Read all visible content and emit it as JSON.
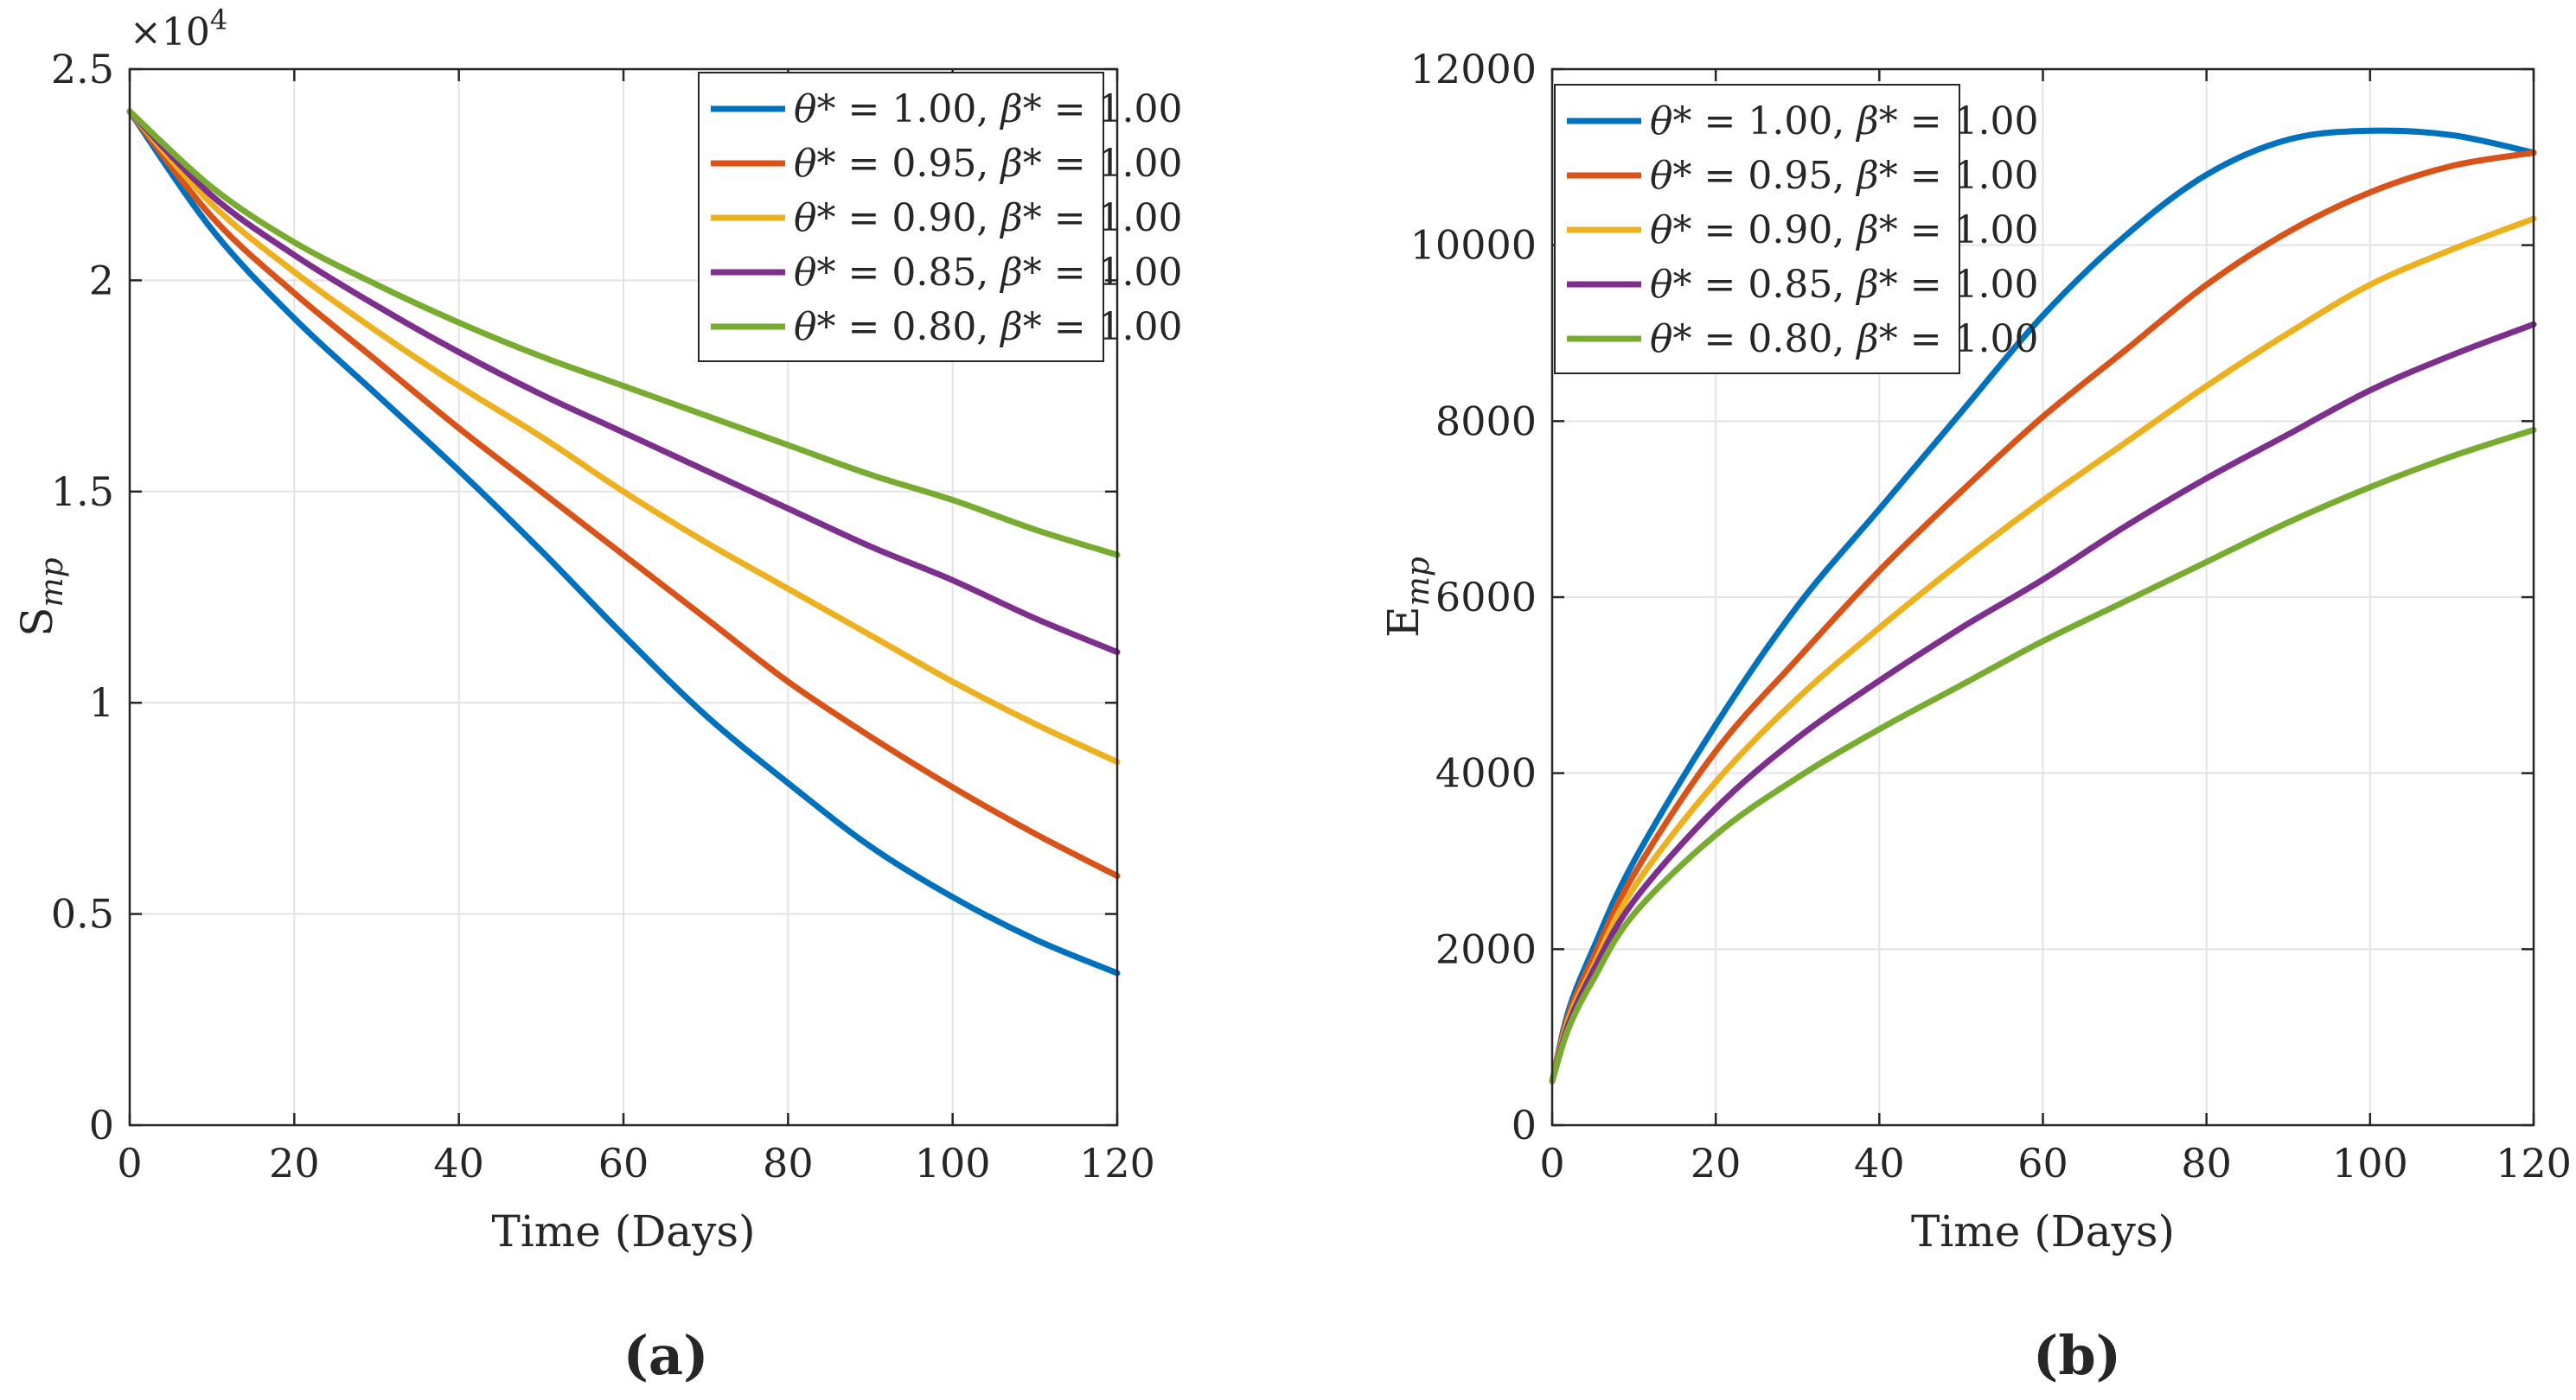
{
  "chart_data": [
    {
      "type": "line",
      "panel_label": "(a)",
      "xlabel": "Time (Days)",
      "ylabel": "S",
      "ylabel_sub": "mp",
      "y_multiplier": "×10",
      "y_multiplier_exp": "4",
      "xlim": [
        0,
        120
      ],
      "ylim": [
        0,
        2.5
      ],
      "xticks": [
        0,
        20,
        40,
        60,
        80,
        100,
        120
      ],
      "xtick_labels": [
        "0",
        "20",
        "40",
        "60",
        "80",
        "100",
        "120"
      ],
      "yticks": [
        0,
        0.5,
        1,
        1.5,
        2,
        2.5
      ],
      "ytick_labels": [
        "0",
        "0.5",
        "1",
        "1.5",
        "2",
        "2.5"
      ],
      "grid": true,
      "legend_position": "top-right",
      "x": [
        0,
        10,
        20,
        30,
        40,
        50,
        60,
        70,
        80,
        90,
        100,
        110,
        120
      ],
      "series": [
        {
          "name": "θ* = 1.00, β* = 1.00",
          "legend_theta": "θ",
          "legend_theta_val": "* = 1.00, ",
          "legend_beta": "β",
          "legend_beta_val": "* = 1.00",
          "color": "#0072BD",
          "values": [
            2.4,
            2.12,
            1.91,
            1.73,
            1.55,
            1.36,
            1.16,
            0.97,
            0.81,
            0.66,
            0.54,
            0.44,
            0.36
          ]
        },
        {
          "name": "θ* = 0.95, β* = 1.00",
          "legend_theta": "θ",
          "legend_theta_val": "* = 0.95, ",
          "legend_beta": "β",
          "legend_beta_val": "* = 1.00",
          "color": "#D95319",
          "values": [
            2.4,
            2.15,
            1.97,
            1.81,
            1.65,
            1.5,
            1.35,
            1.2,
            1.05,
            0.92,
            0.8,
            0.69,
            0.59
          ]
        },
        {
          "name": "θ* = 0.90, β* = 1.00",
          "legend_theta": "θ",
          "legend_theta_val": "* = 0.90, ",
          "legend_beta": "β",
          "legend_beta_val": "* = 1.00",
          "color": "#EDB120",
          "values": [
            2.4,
            2.18,
            2.02,
            1.88,
            1.75,
            1.63,
            1.5,
            1.38,
            1.27,
            1.16,
            1.05,
            0.95,
            0.86
          ]
        },
        {
          "name": "θ* = 0.85, β* = 1.00",
          "legend_theta": "θ",
          "legend_theta_val": "* = 0.85, ",
          "legend_beta": "β",
          "legend_beta_val": "* = 1.00",
          "color": "#7E2F8E",
          "values": [
            2.4,
            2.2,
            2.06,
            1.94,
            1.83,
            1.73,
            1.64,
            1.55,
            1.46,
            1.37,
            1.29,
            1.2,
            1.12
          ]
        },
        {
          "name": "θ* = 0.80, β* = 1.00",
          "legend_theta": "θ",
          "legend_theta_val": "* = 0.80, ",
          "legend_beta": "β",
          "legend_beta_val": "* = 1.00",
          "color": "#77AC30",
          "values": [
            2.4,
            2.22,
            2.09,
            1.99,
            1.9,
            1.82,
            1.75,
            1.68,
            1.61,
            1.54,
            1.48,
            1.41,
            1.35
          ]
        }
      ]
    },
    {
      "type": "line",
      "panel_label": "(b)",
      "xlabel": "Time (Days)",
      "ylabel": "E",
      "ylabel_sub": "mp",
      "xlim": [
        0,
        120
      ],
      "ylim": [
        0,
        12000
      ],
      "xticks": [
        0,
        20,
        40,
        60,
        80,
        100,
        120
      ],
      "xtick_labels": [
        "0",
        "20",
        "40",
        "60",
        "80",
        "100",
        "120"
      ],
      "yticks": [
        0,
        2000,
        4000,
        6000,
        8000,
        10000,
        12000
      ],
      "ytick_labels": [
        "0",
        "2000",
        "4000",
        "6000",
        "8000",
        "10000",
        "12000"
      ],
      "grid": true,
      "legend_position": "top-left",
      "x": [
        0,
        2,
        5,
        10,
        20,
        30,
        40,
        50,
        60,
        70,
        80,
        90,
        100,
        110,
        120
      ],
      "series": [
        {
          "name": "θ* = 1.00, β* = 1.00",
          "legend_theta": "θ",
          "legend_theta_val": "* = 1.00, ",
          "legend_beta": "β",
          "legend_beta_val": "* = 1.00",
          "color": "#0072BD",
          "values": [
            500,
            1300,
            2000,
            3000,
            4550,
            5900,
            7000,
            8100,
            9200,
            10100,
            10800,
            11200,
            11300,
            11250,
            11050
          ]
        },
        {
          "name": "θ* = 0.95, β* = 1.00",
          "legend_theta": "θ",
          "legend_theta_val": "* = 0.95, ",
          "legend_beta": "β",
          "legend_beta_val": "* = 1.00",
          "color": "#D95319",
          "values": [
            500,
            1250,
            1900,
            2850,
            4250,
            5300,
            6300,
            7200,
            8050,
            8800,
            9550,
            10150,
            10600,
            10900,
            11050
          ]
        },
        {
          "name": "θ* = 0.90, β* = 1.00",
          "legend_theta": "θ",
          "legend_theta_val": "* = 0.90, ",
          "legend_beta": "β",
          "legend_beta_val": "* = 1.00",
          "color": "#EDB120",
          "values": [
            500,
            1200,
            1800,
            2700,
            3900,
            4850,
            5650,
            6400,
            7100,
            7750,
            8400,
            9000,
            9550,
            9950,
            10300
          ]
        },
        {
          "name": "θ* = 0.85, β* = 1.00",
          "legend_theta": "θ",
          "legend_theta_val": "* = 0.85, ",
          "legend_beta": "β",
          "legend_beta_val": "* = 1.00",
          "color": "#7E2F8E",
          "values": [
            500,
            1150,
            1750,
            2550,
            3600,
            4400,
            5050,
            5650,
            6200,
            6800,
            7350,
            7850,
            8350,
            8750,
            9100
          ]
        },
        {
          "name": "θ* = 0.80, β* = 1.00",
          "legend_theta": "θ",
          "legend_theta_val": "* = 0.80, ",
          "legend_beta": "β",
          "legend_beta_val": "* = 1.00",
          "color": "#77AC30",
          "values": [
            500,
            1100,
            1650,
            2400,
            3300,
            3950,
            4500,
            5000,
            5500,
            5950,
            6400,
            6850,
            7250,
            7600,
            7900
          ]
        }
      ]
    }
  ]
}
